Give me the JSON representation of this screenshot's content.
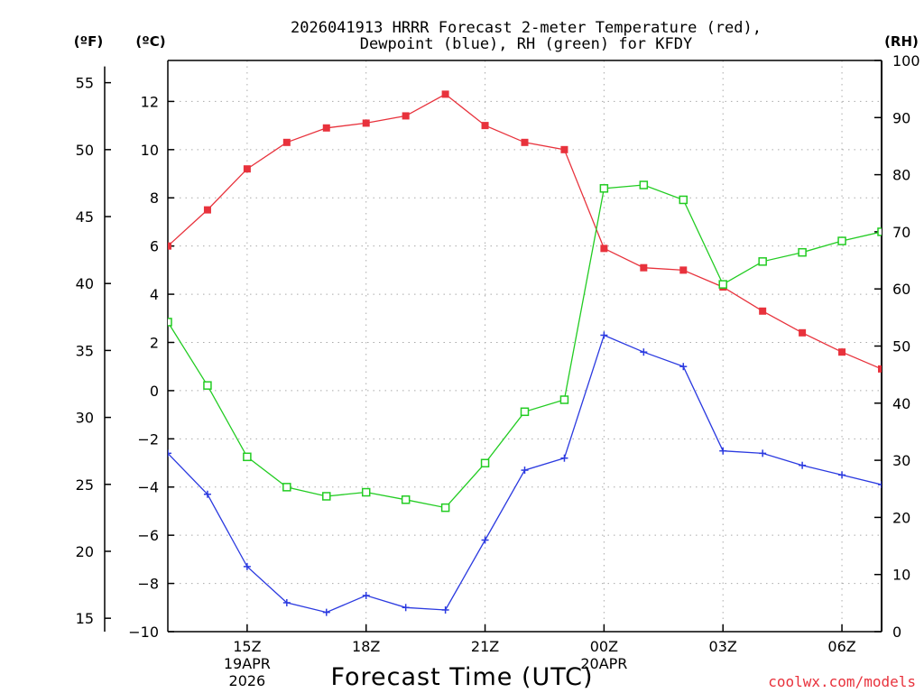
{
  "chart_data": {
    "type": "line",
    "title_lines": [
      "2026041913 HRRR Forecast 2-meter Temperature (red),",
      "Dewpoint (blue), RH (green) for KFDY"
    ],
    "xlabel": "Forecast Time (UTC)",
    "credit": "coolwx.com/models",
    "units": {
      "fahrenheit": "(ºF)",
      "celsius": "(ºC)",
      "rh": "(RH)"
    },
    "x_range": [
      13,
      31
    ],
    "celsius_axis": {
      "range": [
        -10,
        13.7
      ],
      "ticks": [
        12,
        10,
        8,
        6,
        4,
        2,
        0,
        -2,
        -4,
        -6,
        -8,
        -10
      ]
    },
    "fahrenheit_axis": {
      "ticks": [
        55,
        50,
        45,
        40,
        35,
        30,
        25,
        20,
        15
      ]
    },
    "rh_axis": {
      "range": [
        0,
        100
      ],
      "ticks": [
        100,
        90,
        80,
        70,
        60,
        50,
        40,
        30,
        20,
        10,
        0
      ]
    },
    "x_ticks": [
      {
        "x": 15,
        "lines": [
          "15Z",
          "19APR",
          "2026"
        ]
      },
      {
        "x": 18,
        "lines": [
          "18Z"
        ]
      },
      {
        "x": 21,
        "lines": [
          "21Z"
        ]
      },
      {
        "x": 24,
        "lines": [
          "00Z",
          "20APR"
        ]
      },
      {
        "x": 27,
        "lines": [
          "03Z"
        ]
      },
      {
        "x": 30,
        "lines": [
          "06Z"
        ]
      }
    ],
    "series": [
      {
        "name": "Temperature",
        "axis": "celsius",
        "color": "#e8323c",
        "marker": "filled-square",
        "x": [
          13,
          14,
          15,
          16,
          17,
          18,
          19,
          20,
          21,
          22,
          23,
          24,
          25,
          26,
          27,
          28,
          29,
          30,
          31
        ],
        "values": [
          6.0,
          7.5,
          9.2,
          10.3,
          10.9,
          11.1,
          11.4,
          12.3,
          11.0,
          10.3,
          10.0,
          5.9,
          5.1,
          5.0,
          4.3,
          3.3,
          2.4,
          1.6,
          0.9
        ]
      },
      {
        "name": "Dewpoint",
        "axis": "celsius",
        "color": "#2b3ae0",
        "marker": "plus",
        "x": [
          13,
          14,
          15,
          16,
          17,
          18,
          19,
          20,
          21,
          22,
          23,
          24,
          25,
          26,
          27,
          28,
          29,
          30,
          31
        ],
        "values": [
          -2.6,
          -4.3,
          -7.3,
          -8.8,
          -9.2,
          -8.5,
          -9.0,
          -9.1,
          -6.2,
          -3.3,
          -2.8,
          2.3,
          1.6,
          1.0,
          -2.5,
          -2.6,
          -3.1,
          -3.5,
          -3.9
        ]
      },
      {
        "name": "RH",
        "axis": "rh",
        "color": "#22cc22",
        "marker": "open-square",
        "x": [
          13,
          14,
          15,
          16,
          17,
          18,
          19,
          20,
          21,
          22,
          23,
          24,
          25,
          26,
          27,
          28,
          29,
          30,
          31
        ],
        "values": [
          54.2,
          43.1,
          30.6,
          25.3,
          23.7,
          24.4,
          23.1,
          21.7,
          29.5,
          38.5,
          40.6,
          77.6,
          78.2,
          75.6,
          60.8,
          64.8,
          66.4,
          68.4,
          70.0
        ]
      }
    ]
  }
}
